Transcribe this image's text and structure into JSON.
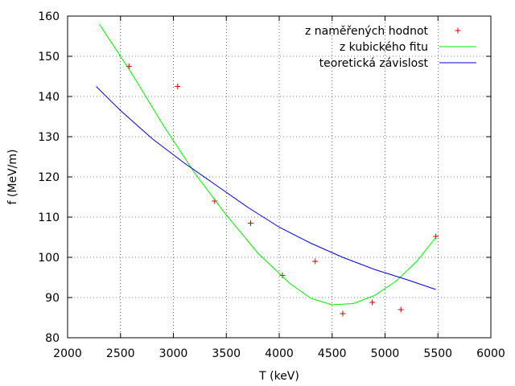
{
  "chart_data": {
    "type": "scatter",
    "xlabel": "T (keV)",
    "ylabel": "f (MeV/m)",
    "xlim": [
      2000,
      6000
    ],
    "ylim": [
      80,
      160
    ],
    "x_ticks": [
      "2000",
      "2500",
      "3000",
      "3500",
      "4000",
      "4500",
      "5000",
      "5500",
      "6000"
    ],
    "y_ticks": [
      "80",
      "90",
      "100",
      "110",
      "120",
      "130",
      "140",
      "150",
      "160"
    ],
    "grid": true,
    "legend_position": "top-right",
    "colors": {
      "points": "#cc0000",
      "fit": "#00ee00",
      "theory": "#0000dd"
    },
    "series": [
      {
        "name": "z naměřených hodnot",
        "kind": "points",
        "points": [
          [
            2580,
            147.5
          ],
          [
            3040,
            142.5
          ],
          [
            3390,
            114.0
          ],
          [
            3730,
            108.5
          ],
          [
            4030,
            95.5
          ],
          [
            4340,
            99.0
          ],
          [
            4600,
            86.0
          ],
          [
            4880,
            88.8
          ],
          [
            5150,
            87.0
          ],
          [
            5480,
            105.2
          ]
        ]
      },
      {
        "name": "z kubického fitu",
        "kind": "line",
        "points": [
          [
            2300,
            158.0
          ],
          [
            2600,
            146.0
          ],
          [
            2900,
            133.0
          ],
          [
            3200,
            121.0
          ],
          [
            3500,
            110.5
          ],
          [
            3800,
            101.0
          ],
          [
            4100,
            93.5
          ],
          [
            4300,
            89.8
          ],
          [
            4500,
            88.2
          ],
          [
            4700,
            88.5
          ],
          [
            4900,
            90.5
          ],
          [
            5100,
            94.0
          ],
          [
            5300,
            99.0
          ],
          [
            5480,
            105.0
          ]
        ]
      },
      {
        "name": "teoretická závislost",
        "kind": "line",
        "points": [
          [
            2270,
            142.5
          ],
          [
            2500,
            136.5
          ],
          [
            2800,
            129.5
          ],
          [
            3100,
            123.5
          ],
          [
            3400,
            118.0
          ],
          [
            3700,
            112.5
          ],
          [
            4000,
            107.5
          ],
          [
            4300,
            103.5
          ],
          [
            4600,
            100.0
          ],
          [
            4900,
            97.0
          ],
          [
            5200,
            94.5
          ],
          [
            5480,
            92.0
          ]
        ]
      }
    ]
  }
}
